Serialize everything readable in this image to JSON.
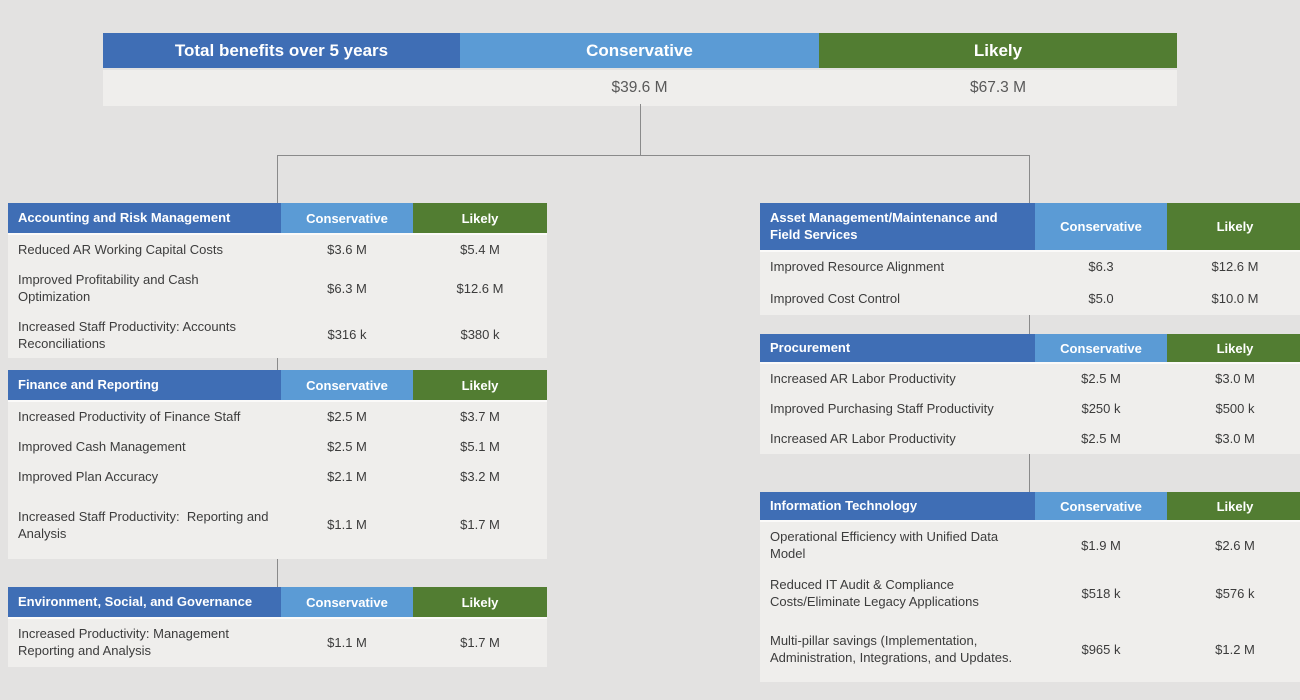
{
  "colors": {
    "dark_blue": "#3F6EB5",
    "light_blue": "#5B9BD5",
    "green": "#527D32",
    "row_bg": "#EFEEEC",
    "page_bg": "#E3E2E1",
    "connector_gray": "#8A8A8A",
    "total_text": "#595959",
    "label_text": "#3C3C3C"
  },
  "summary": {
    "title": "Total benefits over 5 years",
    "col_conservative": "Conservative",
    "col_likely": "Likely",
    "conservative_total": "$39.6 M",
    "likely_total": "$67.3 M"
  },
  "tables": [
    {
      "id": "accounting",
      "title": "Accounting and Risk Management",
      "col_conservative": "Conservative",
      "col_likely": "Likely",
      "rows": [
        {
          "label": "Reduced AR Working Capital Costs",
          "conservative": "$3.6 M",
          "likely": "$5.4 M"
        },
        {
          "label": "Improved Profitability and Cash Optimization",
          "conservative": "$6.3 M",
          "likely": "$12.6 M"
        },
        {
          "label": "Increased Staff Productivity: Accounts Reconciliations",
          "conservative": "$316 k",
          "likely": "$380 k"
        }
      ]
    },
    {
      "id": "finance",
      "title": "Finance and Reporting",
      "col_conservative": "Conservative",
      "col_likely": "Likely",
      "rows": [
        {
          "label": "Increased Productivity of Finance Staff",
          "conservative": "$2.5 M",
          "likely": "$3.7 M"
        },
        {
          "label": "Improved Cash Management",
          "conservative": "$2.5 M",
          "likely": "$5.1 M"
        },
        {
          "label": "Improved Plan Accuracy",
          "conservative": "$2.1 M",
          "likely": "$3.2 M"
        },
        {
          "label": "Increased Staff Productivity:  Reporting and Analysis",
          "conservative": "$1.1 M",
          "likely": "$1.7 M"
        }
      ]
    },
    {
      "id": "esg",
      "title": "Environment, Social, and Governance",
      "col_conservative": "Conservative",
      "col_likely": "Likely",
      "rows": [
        {
          "label": "Increased Productivity: Management Reporting and Analysis",
          "conservative": "$1.1 M",
          "likely": "$1.7 M"
        }
      ]
    },
    {
      "id": "asset",
      "title": "Asset Management/Maintenance and Field Services",
      "col_conservative": "Conservative",
      "col_likely": "Likely",
      "rows": [
        {
          "label": "Improved Resource Alignment",
          "conservative": "$6.3",
          "likely": "$12.6 M"
        },
        {
          "label": "Improved Cost Control",
          "conservative": "$5.0",
          "likely": "$10.0 M"
        }
      ]
    },
    {
      "id": "procurement",
      "title": "Procurement",
      "col_conservative": "Conservative",
      "col_likely": "Likely",
      "rows": [
        {
          "label": "Increased AR Labor Productivity",
          "conservative": "$2.5 M",
          "likely": "$3.0 M"
        },
        {
          "label": "Improved Purchasing Staff Productivity",
          "conservative": "$250 k",
          "likely": "$500 k"
        },
        {
          "label": "Increased AR Labor Productivity",
          "conservative": "$2.5 M",
          "likely": "$3.0 M"
        }
      ]
    },
    {
      "id": "it",
      "title": "Information Technology",
      "col_conservative": "Conservative",
      "col_likely": "Likely",
      "rows": [
        {
          "label": "Operational Efficiency with Unified Data Model",
          "conservative": "$1.9 M",
          "likely": "$2.6 M"
        },
        {
          "label": "Reduced IT Audit & Compliance Costs/Eliminate Legacy Applications",
          "conservative": "$518 k",
          "likely": "$576 k"
        },
        {
          "label": "Multi-pillar savings (Implementation, Administration, Integrations, and Updates.",
          "conservative": "$965 k",
          "likely": "$1.2 M"
        }
      ]
    }
  ]
}
